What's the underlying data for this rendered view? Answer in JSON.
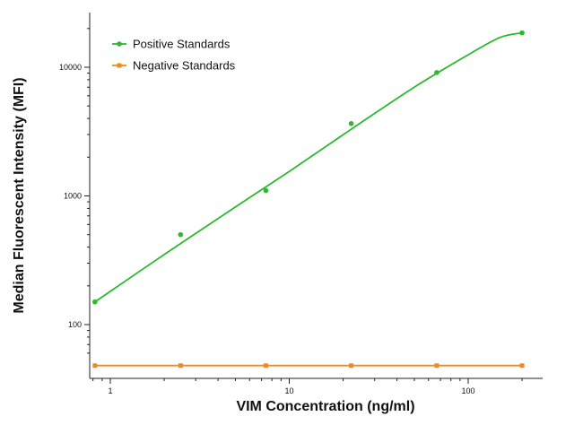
{
  "chart_data": {
    "type": "line",
    "xlabel": "VIM Concentration (ng/ml)",
    "ylabel": "Median Fluorescent Intensity (MFI)",
    "x_scale": "log",
    "y_scale": "log",
    "xlim": [
      0.8,
      350
    ],
    "ylim": [
      60,
      28000
    ],
    "x_ticks": [
      {
        "value": 1,
        "label": "1"
      },
      {
        "value": 10,
        "label": "10"
      },
      {
        "value": 100,
        "label": "100"
      }
    ],
    "y_ticks": [
      {
        "value": 100,
        "label": "100"
      },
      {
        "value": 1000,
        "label": "1000"
      },
      {
        "value": 10000,
        "label": "10000"
      }
    ],
    "grid": false,
    "legend_position": "top-left",
    "series": [
      {
        "name": "Positive Standards",
        "color": "#2db82d",
        "marker": "circle",
        "points": [
          {
            "x": 0.82,
            "y": 150
          },
          {
            "x": 2.47,
            "y": 500
          },
          {
            "x": 7.4,
            "y": 1100
          },
          {
            "x": 22.2,
            "y": 3650
          },
          {
            "x": 66.7,
            "y": 9100
          },
          {
            "x": 200,
            "y": 18500
          }
        ],
        "fit_curve": [
          {
            "x": 0.82,
            "y": 150
          },
          {
            "x": 2.0,
            "y": 350
          },
          {
            "x": 5.0,
            "y": 820
          },
          {
            "x": 10,
            "y": 1550
          },
          {
            "x": 22.2,
            "y": 3300
          },
          {
            "x": 50,
            "y": 7000
          },
          {
            "x": 100,
            "y": 12500
          },
          {
            "x": 150,
            "y": 17000
          },
          {
            "x": 200,
            "y": 18500
          }
        ]
      },
      {
        "name": "Negative Standards",
        "color": "#f08a1c",
        "marker": "square",
        "points": [
          {
            "x": 0.82,
            "y": 48
          },
          {
            "x": 2.47,
            "y": 48
          },
          {
            "x": 7.4,
            "y": 48
          },
          {
            "x": 22.2,
            "y": 48
          },
          {
            "x": 66.7,
            "y": 48
          },
          {
            "x": 200,
            "y": 48
          }
        ],
        "fit_curve": [
          {
            "x": 0.82,
            "y": 48
          },
          {
            "x": 200,
            "y": 48
          }
        ]
      }
    ]
  }
}
